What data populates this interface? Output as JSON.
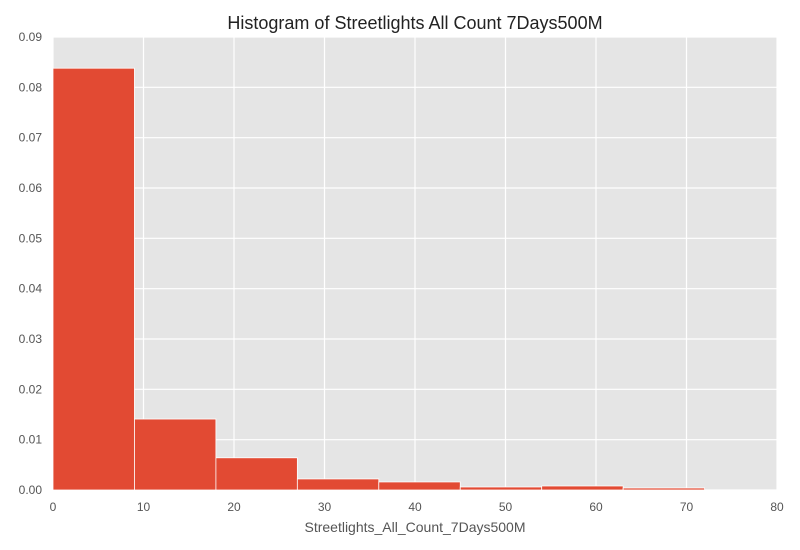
{
  "chart_data": {
    "type": "bar",
    "title": "Histogram of Streetlights All Count 7Days500M",
    "xlabel": "Streetlights_All_Count_7Days500M",
    "ylabel": "",
    "xlim": [
      0,
      80
    ],
    "ylim": [
      0,
      0.09
    ],
    "xticks": [
      "0",
      "10",
      "20",
      "30",
      "40",
      "50",
      "60",
      "70",
      "80"
    ],
    "yticks": [
      "0.00",
      "0.01",
      "0.02",
      "0.03",
      "0.04",
      "0.05",
      "0.06",
      "0.07",
      "0.08",
      "0.09"
    ],
    "grid": true,
    "bins": [
      {
        "x0": 0,
        "x1": 9,
        "value": 0.0838
      },
      {
        "x0": 9,
        "x1": 18,
        "value": 0.0141
      },
      {
        "x0": 18,
        "x1": 27,
        "value": 0.0064
      },
      {
        "x0": 27,
        "x1": 36,
        "value": 0.0022
      },
      {
        "x0": 36,
        "x1": 45,
        "value": 0.0016
      },
      {
        "x0": 45,
        "x1": 54,
        "value": 0.0006
      },
      {
        "x0": 54,
        "x1": 63,
        "value": 0.0008
      },
      {
        "x0": 63,
        "x1": 72,
        "value": 0.0004
      }
    ],
    "colors": {
      "bar": "#E24A33",
      "plot_background": "#E5E5E5",
      "grid": "#FFFFFF"
    }
  }
}
